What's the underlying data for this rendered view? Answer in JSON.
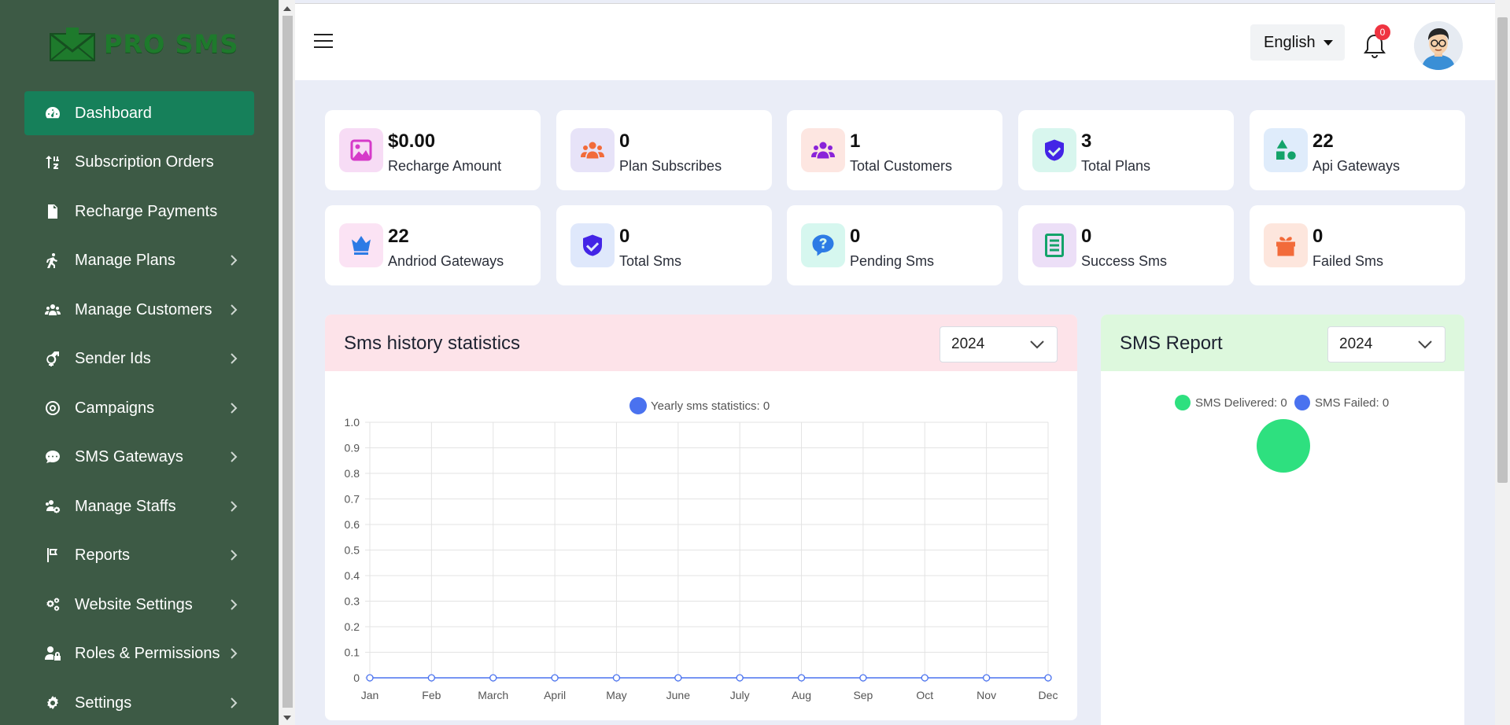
{
  "app": {
    "brand": "PRO SMS"
  },
  "sidebar": {
    "items": [
      {
        "label": "Dashboard",
        "icon": "dashboard-icon",
        "active": true,
        "chevron": false
      },
      {
        "label": "Subscription Orders",
        "icon": "sort-icon",
        "active": false,
        "chevron": false
      },
      {
        "label": "Recharge Payments",
        "icon": "invoice-dollar-icon",
        "active": false,
        "chevron": false
      },
      {
        "label": "Manage Plans",
        "icon": "walking-icon",
        "active": false,
        "chevron": true
      },
      {
        "label": "Manage Customers",
        "icon": "users-icon",
        "active": false,
        "chevron": true
      },
      {
        "label": "Sender Ids",
        "icon": "gender-icon",
        "active": false,
        "chevron": true
      },
      {
        "label": "Campaigns",
        "icon": "target-icon",
        "active": false,
        "chevron": true
      },
      {
        "label": "SMS Gateways",
        "icon": "sms-bubble-icon",
        "active": false,
        "chevron": true
      },
      {
        "label": "Manage Staffs",
        "icon": "users-cog-icon",
        "active": false,
        "chevron": true
      },
      {
        "label": "Reports",
        "icon": "flag-icon",
        "active": false,
        "chevron": true
      },
      {
        "label": "Website Settings",
        "icon": "cogs-icon",
        "active": false,
        "chevron": true
      },
      {
        "label": "Roles & Permissions",
        "icon": "user-lock-icon",
        "active": false,
        "chevron": true
      },
      {
        "label": "Settings",
        "icon": "gear-icon",
        "active": false,
        "chevron": true
      }
    ]
  },
  "header": {
    "language": "English",
    "notification_count": "0"
  },
  "stats": [
    {
      "value": "$0.00",
      "label": "Recharge Amount",
      "icon": "image-icon",
      "bg": "#f7dcf5",
      "fg": "#d63ac9"
    },
    {
      "value": "0",
      "label": "Plan Subscribes",
      "icon": "users-icon",
      "bg": "#e7e3f8",
      "fg": "#f26b3a"
    },
    {
      "value": "1",
      "label": "Total Customers",
      "icon": "users-icon",
      "bg": "#fde6e1",
      "fg": "#8a23d9"
    },
    {
      "value": "3",
      "label": "Total Plans",
      "icon": "shield-check-icon",
      "bg": "#d8f6ee",
      "fg": "#4324e6"
    },
    {
      "value": "22",
      "label": "Api Gateways",
      "icon": "shapes-icon",
      "bg": "#dfecfb",
      "fg": "#13a36a"
    },
    {
      "value": "22",
      "label": "Andriod Gateways",
      "icon": "crown-icon",
      "bg": "#fbe3f4",
      "fg": "#2c7be5"
    },
    {
      "value": "0",
      "label": "Total Sms",
      "icon": "shield-check-icon",
      "bg": "#dfe8fb",
      "fg": "#4324e6"
    },
    {
      "value": "0",
      "label": "Pending Sms",
      "icon": "question-bubble-icon",
      "bg": "#d6f7ef",
      "fg": "#2d7be5"
    },
    {
      "value": "0",
      "label": "Success Sms",
      "icon": "list-icon",
      "bg": "#ecdff7",
      "fg": "#13a36a"
    },
    {
      "value": "0",
      "label": "Failed Sms",
      "icon": "gift-icon",
      "bg": "#fde6dd",
      "fg": "#f26b3a"
    }
  ],
  "history_panel": {
    "title": "Sms history statistics",
    "year": "2024",
    "header_bg": "#fde3e9"
  },
  "report_panel": {
    "title": "SMS Report",
    "year": "2024",
    "header_bg": "#ddf8dd",
    "legend": [
      {
        "label": "SMS Delivered: 0",
        "color": "#2ee07f"
      },
      {
        "label": "SMS Failed: 0",
        "color": "#4a72ef"
      }
    ]
  },
  "chart_data": [
    {
      "type": "line",
      "series": [
        {
          "name": "Yearly sms statistics: 0",
          "color": "#4a72ef",
          "values": [
            0,
            0,
            0,
            0,
            0,
            0,
            0,
            0,
            0,
            0,
            0,
            0
          ]
        }
      ],
      "categories": [
        "Jan",
        "Feb",
        "March",
        "April",
        "May",
        "June",
        "July",
        "Aug",
        "Sep",
        "Oct",
        "Nov",
        "Dec"
      ],
      "yticks": [
        "0",
        "0.1",
        "0.2",
        "0.3",
        "0.4",
        "0.5",
        "0.6",
        "0.7",
        "0.8",
        "0.9",
        "1.0"
      ],
      "ylim": [
        0,
        1
      ],
      "grid": true,
      "legend": "top-center"
    },
    {
      "type": "pie",
      "categories": [
        "SMS Delivered: 0",
        "SMS Failed: 0"
      ],
      "values": [
        0,
        0
      ],
      "colors": [
        "#2ee07f",
        "#4a72ef"
      ],
      "legend": "top-center"
    }
  ]
}
